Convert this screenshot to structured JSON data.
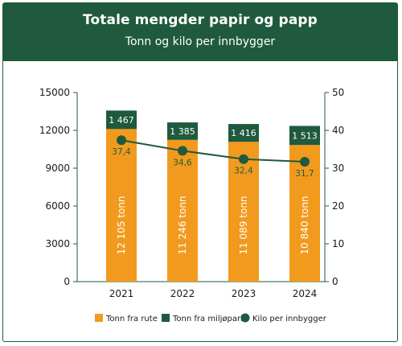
{
  "header": {
    "title": "Totale mengder papir og papp",
    "subtitle": "Tonn og kilo per innbygger"
  },
  "colors": {
    "header_bg": "#1f5a3e",
    "rute": "#f29a1d",
    "miljopark": "#1f5a3e",
    "kilo_line": "#1f5a3e"
  },
  "chart_data": {
    "type": "bar",
    "stacked": true,
    "title": "Totale mengder papir og papp",
    "subtitle": "Tonn og kilo per innbygger",
    "categories": [
      "2021",
      "2022",
      "2023",
      "2024"
    ],
    "series": [
      {
        "name": "Tonn fra rute",
        "values": [
          12105,
          11246,
          11089,
          10840
        ],
        "labels": [
          "12 105 tonn",
          "11 246 tonn",
          "11 089 tonn",
          "10 840 tonn"
        ]
      },
      {
        "name": "Tonn fra miljøpark",
        "values": [
          1467,
          1385,
          1416,
          1513
        ],
        "labels": [
          "1 467",
          "1 385",
          "1 416",
          "1 513"
        ]
      }
    ],
    "line_series": {
      "name": "Kilo per innbygger",
      "axis": "right",
      "values": [
        37.4,
        34.6,
        32.4,
        31.7
      ],
      "labels": [
        "37,4",
        "34,6",
        "32,4",
        "31,7"
      ]
    },
    "y_left": {
      "range": [
        0,
        15000
      ],
      "ticks": [
        0,
        3000,
        6000,
        9000,
        12000,
        15000
      ]
    },
    "y_right": {
      "range": [
        0,
        50
      ],
      "ticks": [
        0,
        10,
        20,
        30,
        40,
        50
      ]
    },
    "grid": false,
    "legend_position": "bottom"
  }
}
